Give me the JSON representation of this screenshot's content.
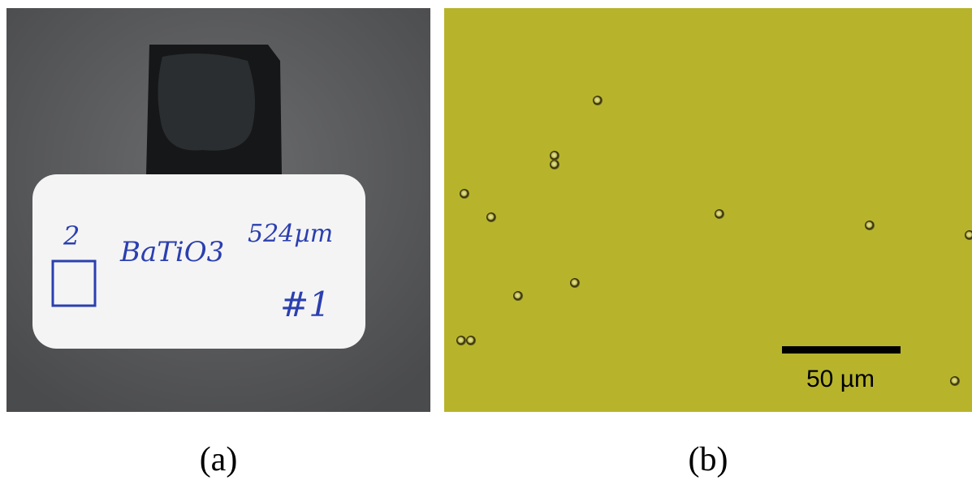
{
  "panels": [
    {
      "label": "(a)",
      "card_text": [
        "2",
        "BaTiO3",
        "524µm",
        "#1"
      ]
    },
    {
      "label": "(b)",
      "scale_bar": "50 µm"
    }
  ]
}
